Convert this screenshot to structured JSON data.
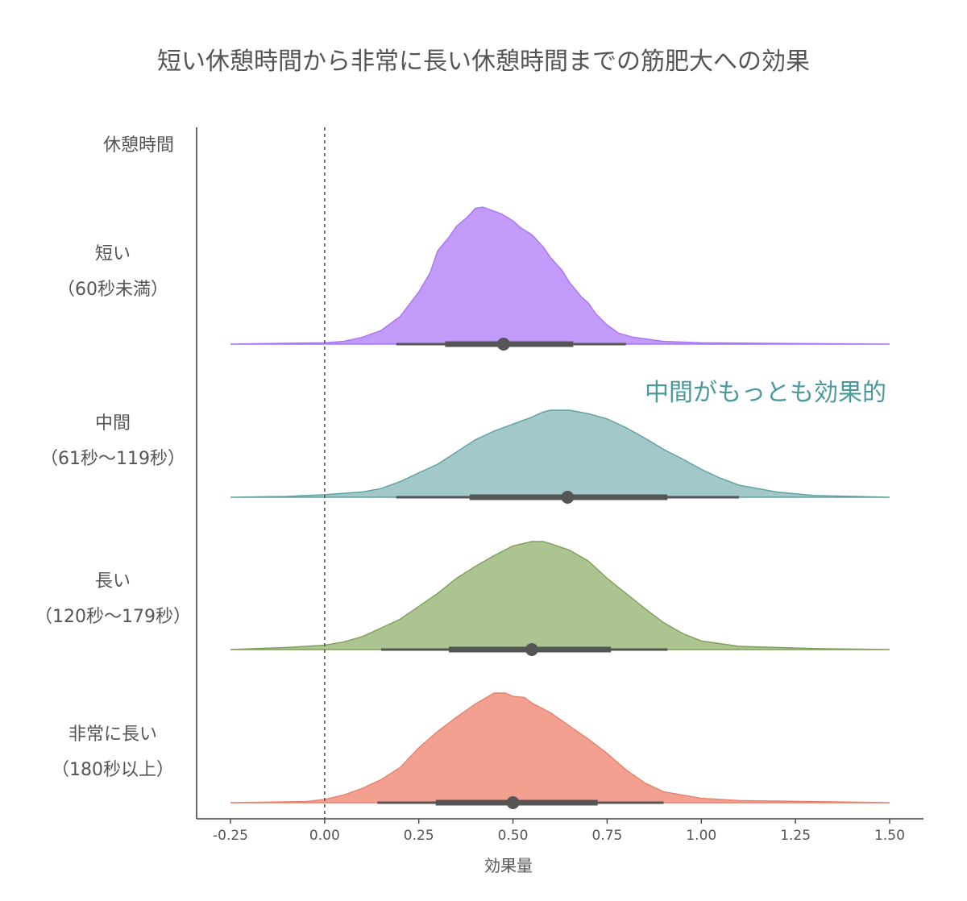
{
  "chart_data": {
    "type": "ridgeline",
    "title": "短い休憩時間から非常に長い休憩時間までの筋肥大への効果",
    "xlabel": "効果量",
    "ylabel": "休憩時間",
    "xlim": [
      -0.25,
      1.5
    ],
    "xticks": [
      "-0.25",
      "0.00",
      "0.25",
      "0.50",
      "0.75",
      "1.00",
      "1.25",
      "1.50"
    ],
    "xtick_values": [
      -0.25,
      0,
      0.25,
      0.5,
      0.75,
      1.0,
      1.25,
      1.5
    ],
    "reference_line_x": 0,
    "annotation": {
      "text": "中間がもっとも効果的",
      "color": "#4a9a9a"
    },
    "series": [
      {
        "name": "短い",
        "label_lines": [
          "短い",
          "（60秒未満）"
        ],
        "fill": "#c39bfb",
        "stroke": "#a873f5",
        "x": [
          -0.25,
          0.0,
          0.05,
          0.1,
          0.15,
          0.2,
          0.25,
          0.28,
          0.3,
          0.33,
          0.35,
          0.38,
          0.4,
          0.42,
          0.44,
          0.47,
          0.5,
          0.52,
          0.55,
          0.58,
          0.6,
          0.63,
          0.65,
          0.68,
          0.7,
          0.72,
          0.75,
          0.78,
          0.82,
          0.9,
          1.0,
          1.2,
          1.5
        ],
        "density": [
          0.0,
          0.01,
          0.02,
          0.05,
          0.1,
          0.2,
          0.38,
          0.52,
          0.68,
          0.78,
          0.86,
          0.93,
          0.99,
          1.0,
          0.98,
          0.95,
          0.9,
          0.85,
          0.8,
          0.71,
          0.63,
          0.54,
          0.45,
          0.35,
          0.3,
          0.22,
          0.14,
          0.08,
          0.05,
          0.02,
          0.01,
          0.005,
          0.0
        ],
        "median": 0.475,
        "interval_inner": [
          0.32,
          0.66
        ],
        "interval_outer": [
          0.19,
          0.8
        ]
      },
      {
        "name": "中間",
        "label_lines": [
          "中間",
          "（61秒〜119秒）"
        ],
        "fill": "#a2c8c9",
        "stroke": "#5fa1a2",
        "x": [
          -0.25,
          -0.1,
          0.0,
          0.1,
          0.15,
          0.2,
          0.25,
          0.3,
          0.35,
          0.4,
          0.45,
          0.5,
          0.55,
          0.58,
          0.6,
          0.65,
          0.7,
          0.75,
          0.8,
          0.85,
          0.9,
          0.95,
          1.0,
          1.05,
          1.1,
          1.2,
          1.3,
          1.5
        ],
        "density": [
          0.0,
          0.01,
          0.03,
          0.06,
          0.1,
          0.18,
          0.28,
          0.38,
          0.52,
          0.66,
          0.76,
          0.84,
          0.92,
          0.98,
          1.0,
          1.0,
          0.96,
          0.9,
          0.8,
          0.68,
          0.55,
          0.44,
          0.32,
          0.22,
          0.14,
          0.06,
          0.02,
          0.0
        ],
        "median": 0.645,
        "interval_inner": [
          0.385,
          0.91
        ],
        "interval_outer": [
          0.19,
          1.1
        ]
      },
      {
        "name": "長い",
        "label_lines": [
          "長い",
          "（120秒〜179秒）"
        ],
        "fill": "#acc48f",
        "stroke": "#7ea05a",
        "x": [
          -0.25,
          -0.1,
          0.0,
          0.05,
          0.1,
          0.15,
          0.2,
          0.25,
          0.3,
          0.35,
          0.4,
          0.45,
          0.5,
          0.55,
          0.58,
          0.6,
          0.65,
          0.7,
          0.75,
          0.8,
          0.85,
          0.9,
          0.95,
          1.0,
          1.1,
          1.3,
          1.5
        ],
        "density": [
          0.0,
          0.02,
          0.04,
          0.07,
          0.12,
          0.2,
          0.28,
          0.4,
          0.52,
          0.66,
          0.77,
          0.87,
          0.96,
          1.0,
          1.0,
          0.98,
          0.92,
          0.82,
          0.66,
          0.52,
          0.38,
          0.25,
          0.15,
          0.08,
          0.03,
          0.01,
          0.0
        ],
        "median": 0.55,
        "interval_inner": [
          0.33,
          0.76
        ],
        "interval_outer": [
          0.15,
          0.91
        ]
      },
      {
        "name": "非常に長い",
        "label_lines": [
          "非常に長い",
          "（180秒以上）"
        ],
        "fill": "#f4a091",
        "stroke": "#e8806b",
        "x": [
          -0.25,
          -0.05,
          0.0,
          0.05,
          0.1,
          0.15,
          0.2,
          0.25,
          0.3,
          0.35,
          0.4,
          0.43,
          0.45,
          0.48,
          0.5,
          0.53,
          0.55,
          0.6,
          0.65,
          0.7,
          0.75,
          0.8,
          0.85,
          0.9,
          1.0,
          1.1,
          1.5
        ],
        "density": [
          0.0,
          0.01,
          0.03,
          0.07,
          0.13,
          0.21,
          0.32,
          0.5,
          0.65,
          0.78,
          0.9,
          0.96,
          1.0,
          1.0,
          0.97,
          0.96,
          0.91,
          0.82,
          0.7,
          0.58,
          0.45,
          0.3,
          0.18,
          0.1,
          0.04,
          0.02,
          0.0
        ],
        "median": 0.5,
        "interval_inner": [
          0.295,
          0.725
        ],
        "interval_outer": [
          0.14,
          0.9
        ]
      }
    ]
  }
}
